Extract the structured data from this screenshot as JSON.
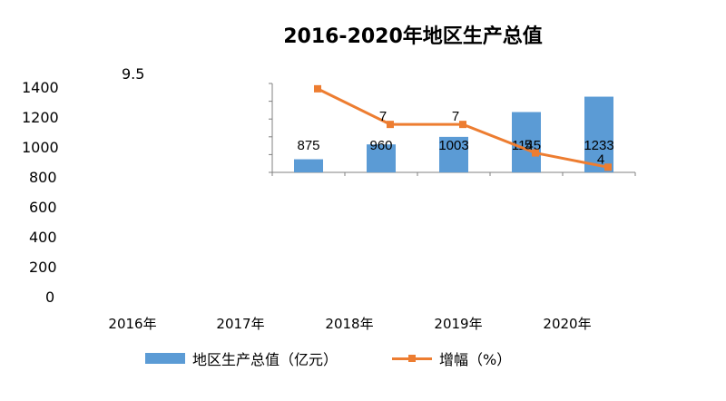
{
  "chart_data": {
    "type": "bar",
    "title": "2016-2020年地区生产总值",
    "categories": [
      "2016年",
      "2017年",
      "2018年",
      "2019年",
      "2020年"
    ],
    "y_ticks": [
      "0",
      "200",
      "400",
      "600",
      "800",
      "1000",
      "1200",
      "1400"
    ],
    "ylim": [
      0,
      1400
    ],
    "stray_label": "9.5",
    "series": [
      {
        "name": "地区生产总值（亿元）",
        "kind": "bar",
        "color": "#5b9bd5",
        "values": [
          875,
          960,
          1003,
          1145,
          1233
        ],
        "labels": [
          "875",
          "960",
          "1003",
          "1145",
          "1233"
        ]
      },
      {
        "name": "增幅（%）",
        "kind": "line",
        "color": "#ed7d31",
        "values": [
          9.5,
          7,
          7,
          5,
          4
        ],
        "labels": [
          "9.5",
          "7",
          "7",
          "5",
          "4"
        ]
      }
    ],
    "legend_position": "bottom",
    "grid": false
  }
}
